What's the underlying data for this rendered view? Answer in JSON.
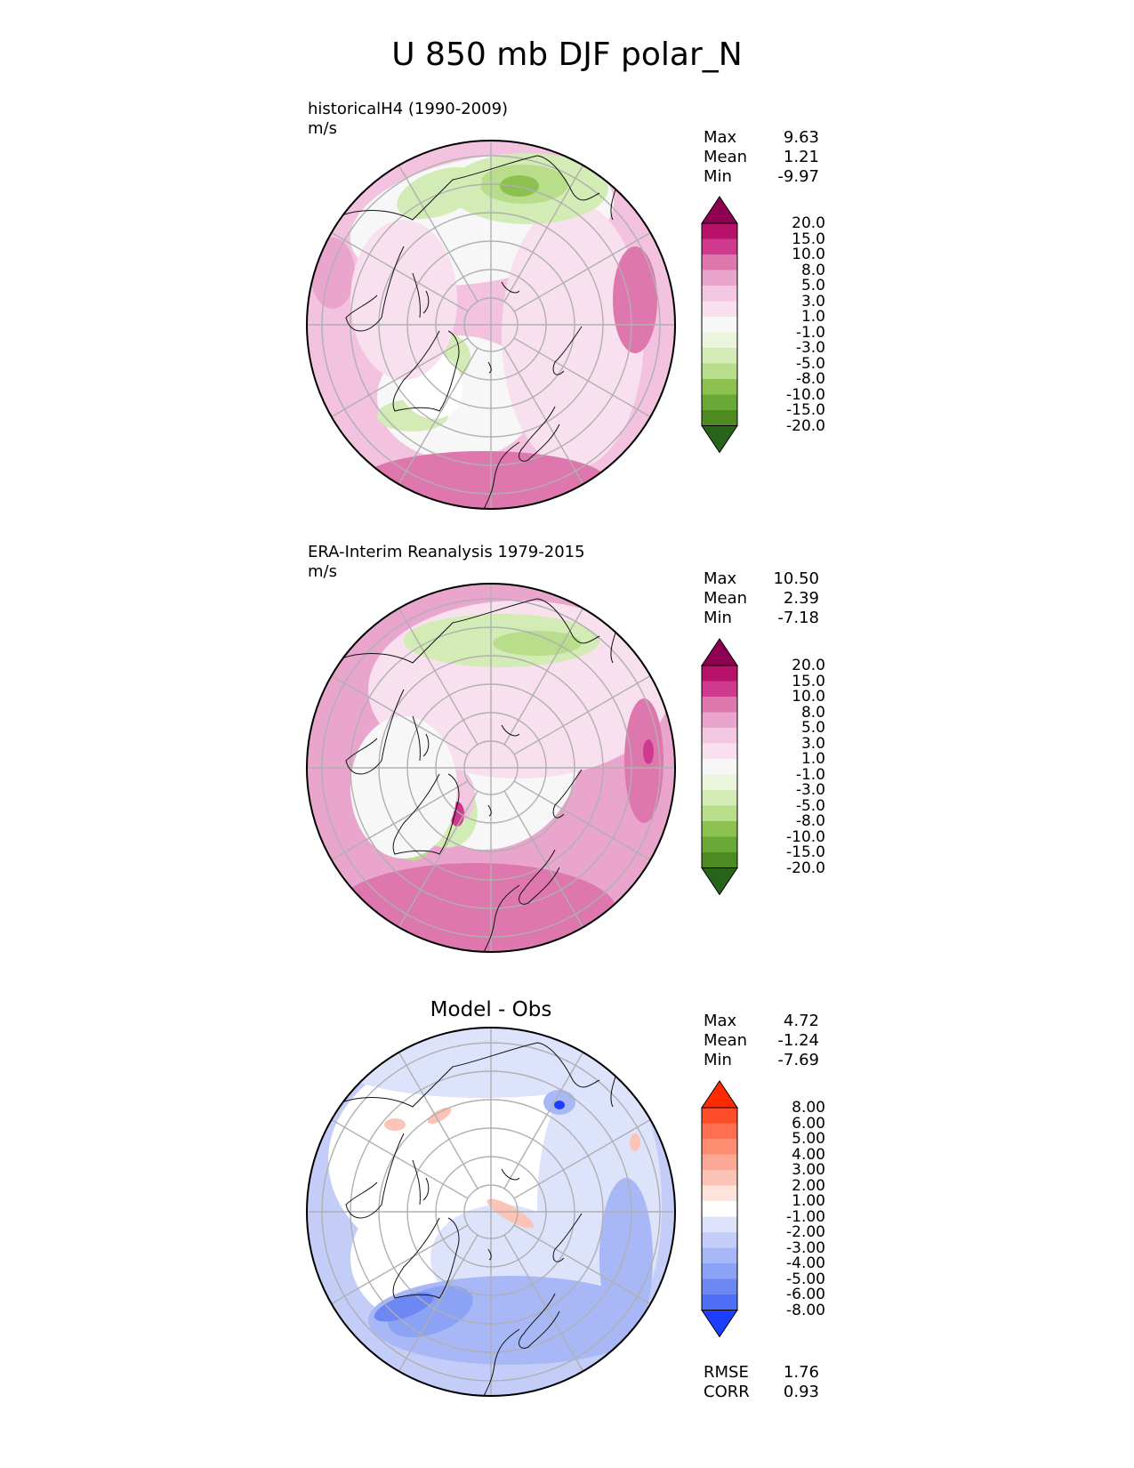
{
  "title": "U 850 mb DJF polar_N",
  "panels": [
    {
      "id": "model",
      "subtitle_line1": "historicalH4 (1990-2009)",
      "subtitle_line2": "m/s",
      "stats": {
        "max": "9.63",
        "mean": "1.21",
        "min": "-9.97"
      },
      "colorbar": "absolute"
    },
    {
      "id": "obs",
      "subtitle_line1": "ERA-Interim Reanalysis 1979-2015",
      "subtitle_line2": "m/s",
      "stats": {
        "max": "10.50",
        "mean": "2.39",
        "min": "-7.18"
      },
      "colorbar": "absolute"
    },
    {
      "id": "diff",
      "center_title": "Model - Obs",
      "stats": {
        "max": "4.72",
        "mean": "-1.24",
        "min": "-7.69"
      },
      "colorbar": "diff",
      "scores": {
        "rmse": "1.76",
        "corr": "0.93"
      }
    }
  ],
  "stat_labels": {
    "max": "Max",
    "mean": "Mean",
    "min": "Min",
    "rmse": "RMSE",
    "corr": "CORR"
  },
  "colorbars": {
    "absolute": {
      "labels": [
        "20.0",
        "15.0",
        "10.0",
        "8.0",
        "5.0",
        "3.0",
        "1.0",
        "-1.0",
        "-3.0",
        "-5.0",
        "-8.0",
        "-10.0",
        "-15.0",
        "-20.0"
      ],
      "colors": [
        "#8e0152",
        "#b8116a",
        "#cf3a8e",
        "#de77ae",
        "#eaa5cd",
        "#f3c6e1",
        "#f8e0ee",
        "#f7f7f7",
        "#eaf5dc",
        "#d3ebb4",
        "#b8de8b",
        "#8cc04f",
        "#69a737",
        "#4d8b22",
        "#276419"
      ]
    },
    "diff": {
      "labels": [
        "8.00",
        "6.00",
        "5.00",
        "4.00",
        "3.00",
        "2.00",
        "1.00",
        "-1.00",
        "-2.00",
        "-3.00",
        "-4.00",
        "-5.00",
        "-6.00",
        "-8.00"
      ],
      "colors": [
        "#ff2a00",
        "#ff4d2a",
        "#ff6e4f",
        "#fe8c71",
        "#fca896",
        "#fbc4b7",
        "#fde3dc",
        "#ffffff",
        "#dde3fb",
        "#c3cdf8",
        "#a8b8f6",
        "#8ca2f4",
        "#6d88f3",
        "#4e6ef5",
        "#1c3fff"
      ]
    }
  },
  "fields": {
    "model": {
      "background": "#f2c2df",
      "colors": [
        "#f7f7f7",
        "#f8e0ee",
        "#eaa5cd",
        "#de77ae",
        "#d3ebb4",
        "#b8de8b",
        "#8cc04f",
        "#ffffff"
      ]
    },
    "obs": {
      "background": "#eaa5cd",
      "colors": [
        "#f7f7f7",
        "#f8e0ee",
        "#f3c6e1",
        "#de77ae",
        "#d3ebb4",
        "#b8de8b",
        "#cf3a8e"
      ]
    },
    "diff": {
      "background": "#c3cdf8",
      "colors": [
        "#ffffff",
        "#dde3fb",
        "#a8b8f6",
        "#8ca2f4",
        "#6d88f3",
        "#1c3fff",
        "#fbc4b7",
        "#fca896"
      ]
    }
  }
}
